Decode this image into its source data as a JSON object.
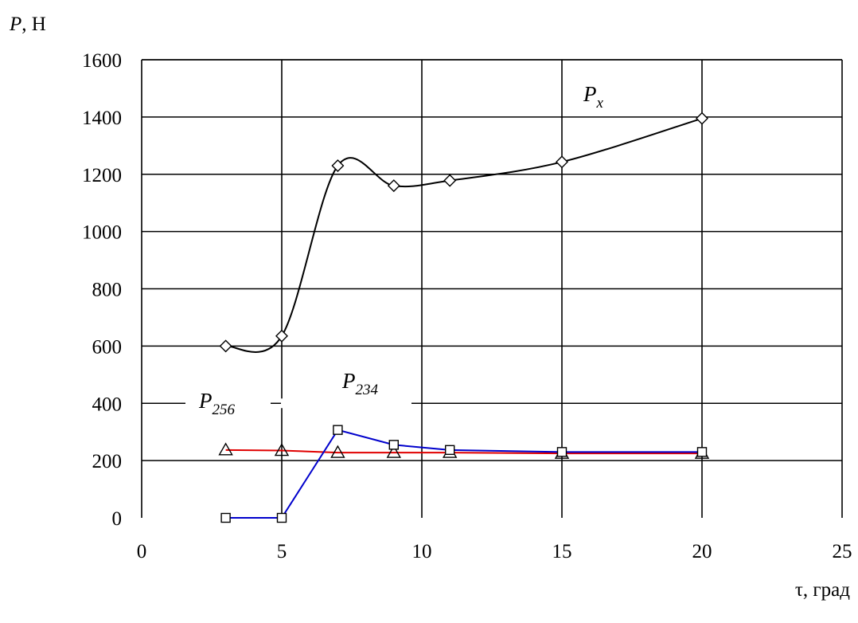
{
  "chart_data": {
    "type": "line",
    "ylabel_var": "P",
    "ylabel_unit": ", Н",
    "xlabel": "τ, град",
    "xlim": [
      0,
      25
    ],
    "ylim": [
      0,
      1600
    ],
    "xticks": [
      "0",
      "5",
      "10",
      "15",
      "20",
      "25"
    ],
    "yticks": [
      "0",
      "200",
      "400",
      "600",
      "800",
      "1000",
      "1200",
      "1400",
      "1600"
    ],
    "grid": true,
    "series": [
      {
        "name_main": "P",
        "name_sub": "x",
        "color": "#000000",
        "marker": "diamond",
        "smooth": true,
        "x": [
          3,
          5,
          7,
          9,
          11,
          15,
          20
        ],
        "y": [
          600,
          635,
          1230,
          1160,
          1178,
          1243,
          1395
        ]
      },
      {
        "name_main": "P",
        "name_sub": "234",
        "color": "#0000cc",
        "marker": "square",
        "smooth": false,
        "x": [
          3,
          5,
          7,
          9,
          11,
          15,
          20
        ],
        "y": [
          0,
          0,
          307,
          255,
          237,
          230,
          230
        ]
      },
      {
        "name_main": "P",
        "name_sub": "256",
        "color": "#e00000",
        "marker": "triangle",
        "smooth": false,
        "x": [
          3,
          5,
          7,
          9,
          11,
          15,
          20
        ],
        "y": [
          237,
          235,
          228,
          228,
          228,
          225,
          225
        ]
      }
    ]
  }
}
